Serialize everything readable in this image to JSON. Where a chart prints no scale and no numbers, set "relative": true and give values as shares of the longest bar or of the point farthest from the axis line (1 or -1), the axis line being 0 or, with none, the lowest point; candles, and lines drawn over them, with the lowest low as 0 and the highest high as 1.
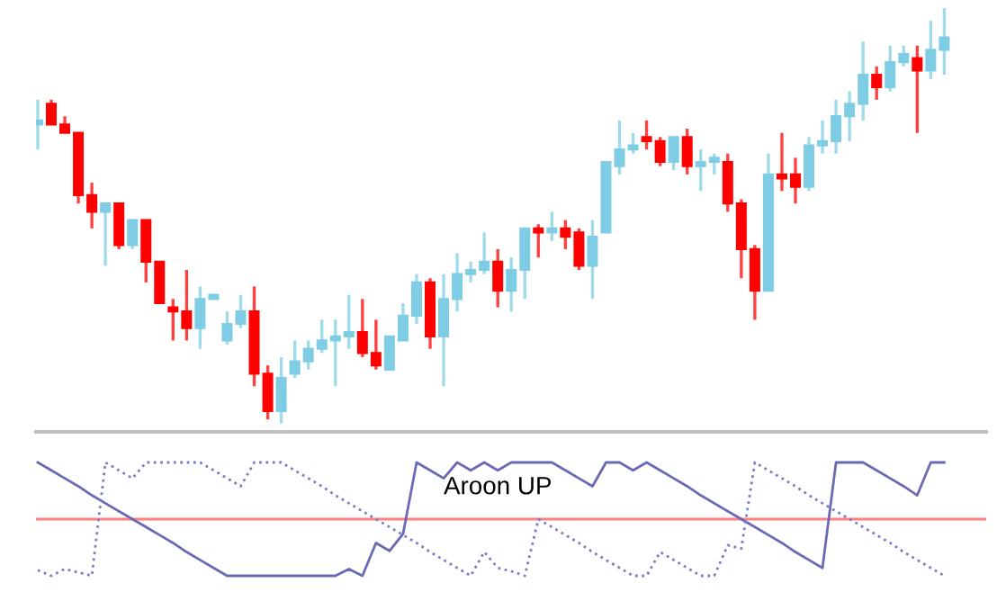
{
  "chart_data": [
    {
      "type": "candlestick",
      "relative": true,
      "categories": [
        null,
        null,
        null,
        null,
        null,
        null,
        null,
        null,
        null,
        null,
        null,
        null,
        null,
        null,
        null,
        null,
        null,
        null,
        null,
        null,
        null,
        null,
        null,
        null,
        null,
        null,
        null,
        null,
        null,
        null,
        null,
        null,
        null,
        null,
        null,
        null,
        null,
        null,
        null,
        null,
        null,
        null,
        null,
        null,
        null,
        null,
        null,
        null,
        null,
        null,
        null,
        null,
        null,
        null,
        null,
        null,
        null,
        null,
        null,
        null,
        null,
        null,
        null,
        null,
        null,
        null,
        null,
        null
      ],
      "ohlc": [
        [
          0.72,
          0.78,
          0.66,
          0.73
        ],
        [
          0.77,
          0.78,
          0.72,
          0.72
        ],
        [
          0.72,
          0.74,
          0.7,
          0.7
        ],
        [
          0.7,
          0.7,
          0.53,
          0.55
        ],
        [
          0.55,
          0.58,
          0.47,
          0.51
        ],
        [
          0.51,
          0.53,
          0.38,
          0.53
        ],
        [
          0.53,
          0.53,
          0.42,
          0.43
        ],
        [
          0.43,
          0.49,
          0.42,
          0.49
        ],
        [
          0.49,
          0.49,
          0.34,
          0.39
        ],
        [
          0.39,
          0.39,
          0.29,
          0.29
        ],
        [
          0.28,
          0.3,
          0.2,
          0.27
        ],
        [
          0.27,
          0.37,
          0.2,
          0.23
        ],
        [
          0.23,
          0.33,
          0.18,
          0.3
        ],
        [
          0.3,
          0.31,
          0.3,
          0.31
        ],
        [
          0.2,
          0.27,
          0.19,
          0.24
        ],
        [
          0.24,
          0.31,
          0.23,
          0.27
        ],
        [
          0.27,
          0.33,
          0.09,
          0.12
        ],
        [
          0.12,
          0.14,
          0.01,
          0.03
        ],
        [
          0.03,
          0.16,
          0.0,
          0.11
        ],
        [
          0.12,
          0.2,
          0.11,
          0.15
        ],
        [
          0.15,
          0.2,
          0.13,
          0.18
        ],
        [
          0.18,
          0.25,
          0.17,
          0.2
        ],
        [
          0.2,
          0.25,
          0.09,
          0.21
        ],
        [
          0.21,
          0.31,
          0.18,
          0.22
        ],
        [
          0.22,
          0.3,
          0.16,
          0.17
        ],
        [
          0.17,
          0.25,
          0.13,
          0.14
        ],
        [
          0.13,
          0.21,
          0.13,
          0.21
        ],
        [
          0.2,
          0.29,
          0.2,
          0.26
        ],
        [
          0.26,
          0.36,
          0.24,
          0.34
        ],
        [
          0.34,
          0.35,
          0.18,
          0.21
        ],
        [
          0.21,
          0.36,
          0.09,
          0.3
        ],
        [
          0.3,
          0.41,
          0.27,
          0.36
        ],
        [
          0.36,
          0.39,
          0.34,
          0.37
        ],
        [
          0.37,
          0.46,
          0.36,
          0.39
        ],
        [
          0.39,
          0.42,
          0.28,
          0.32
        ],
        [
          0.32,
          0.4,
          0.27,
          0.37
        ],
        [
          0.37,
          0.47,
          0.3,
          0.47
        ],
        [
          0.47,
          0.48,
          0.4,
          0.46
        ],
        [
          0.46,
          0.51,
          0.44,
          0.47
        ],
        [
          0.47,
          0.49,
          0.42,
          0.45
        ],
        [
          0.46,
          0.47,
          0.37,
          0.38
        ],
        [
          0.38,
          0.49,
          0.3,
          0.45
        ],
        [
          0.46,
          0.63,
          0.46,
          0.63
        ],
        [
          0.62,
          0.73,
          0.6,
          0.66
        ],
        [
          0.66,
          0.7,
          0.65,
          0.67
        ],
        [
          0.69,
          0.73,
          0.66,
          0.68
        ],
        [
          0.68,
          0.69,
          0.62,
          0.63
        ],
        [
          0.63,
          0.69,
          0.61,
          0.69
        ],
        [
          0.69,
          0.71,
          0.6,
          0.62
        ],
        [
          0.62,
          0.66,
          0.56,
          0.63
        ],
        [
          0.63,
          0.65,
          0.6,
          0.64
        ],
        [
          0.63,
          0.65,
          0.51,
          0.53
        ],
        [
          0.53,
          0.54,
          0.35,
          0.42
        ],
        [
          0.42,
          0.43,
          0.25,
          0.32
        ],
        [
          0.32,
          0.65,
          0.32,
          0.6
        ],
        [
          0.6,
          0.7,
          0.56,
          0.59
        ],
        [
          0.6,
          0.64,
          0.53,
          0.57
        ],
        [
          0.57,
          0.69,
          0.56,
          0.67
        ],
        [
          0.67,
          0.73,
          0.65,
          0.68
        ],
        [
          0.68,
          0.78,
          0.65,
          0.74
        ],
        [
          0.74,
          0.8,
          0.68,
          0.77
        ],
        [
          0.77,
          0.92,
          0.73,
          0.84
        ],
        [
          0.84,
          0.86,
          0.78,
          0.81
        ],
        [
          0.81,
          0.91,
          0.8,
          0.87
        ],
        [
          0.87,
          0.91,
          0.86,
          0.89
        ],
        [
          0.88,
          0.91,
          0.7,
          0.85
        ],
        [
          0.85,
          0.97,
          0.83,
          0.9
        ],
        [
          0.9,
          1.0,
          0.84,
          0.93
        ]
      ],
      "colors": [
        "#7fcde4",
        "#ff0000",
        "#ff0000",
        "#ff0000",
        "#ff0000",
        "#7fcde4",
        "#ff0000",
        "#7fcde4",
        "#ff0000",
        "#ff0000",
        "#ff0000",
        "#ff0000",
        "#7fcde4",
        "#7fcde4",
        "#7fcde4",
        "#7fcde4",
        "#ff0000",
        "#ff0000",
        "#7fcde4",
        "#7fcde4",
        "#7fcde4",
        "#7fcde4",
        "#7fcde4",
        "#7fcde4",
        "#ff0000",
        "#ff0000",
        "#7fcde4",
        "#7fcde4",
        "#7fcde4",
        "#ff0000",
        "#7fcde4",
        "#7fcde4",
        "#7fcde4",
        "#7fcde4",
        "#ff0000",
        "#7fcde4",
        "#7fcde4",
        "#ff0000",
        "#7fcde4",
        "#ff0000",
        "#ff0000",
        "#7fcde4",
        "#7fcde4",
        "#7fcde4",
        "#7fcde4",
        "#ff0000",
        "#ff0000",
        "#7fcde4",
        "#ff0000",
        "#7fcde4",
        "#7fcde4",
        "#ff0000",
        "#ff0000",
        "#ff0000",
        "#7fcde4",
        "#ff0000",
        "#ff0000",
        "#7fcde4",
        "#7fcde4",
        "#7fcde4",
        "#7fcde4",
        "#7fcde4",
        "#ff0000",
        "#7fcde4",
        "#7fcde4",
        "#ff0000",
        "#7fcde4",
        "#7fcde4"
      ]
    },
    {
      "type": "line",
      "relative": true,
      "marker": "none",
      "categories": [
        null,
        null,
        null,
        null,
        null,
        null,
        null,
        null,
        null,
        null,
        null,
        null,
        null,
        null,
        null,
        null,
        null,
        null,
        null,
        null,
        null,
        null,
        null,
        null,
        null,
        null,
        null,
        null,
        null,
        null,
        null,
        null,
        null,
        null,
        null,
        null,
        null,
        null,
        null,
        null,
        null,
        null,
        null,
        null,
        null,
        null,
        null,
        null,
        null,
        null,
        null,
        null,
        null,
        null,
        null,
        null,
        null,
        null,
        null,
        null,
        null,
        null,
        null,
        null,
        null,
        null,
        null,
        null
      ],
      "series": [
        {
          "name": "Aroon UP",
          "color": "#6a6ab4",
          "line_style": "solid",
          "values": [
            1.0,
            0.93,
            0.86,
            0.79,
            0.71,
            0.64,
            0.57,
            0.5,
            0.43,
            0.36,
            0.29,
            0.21,
            0.14,
            0.07,
            0,
            0,
            0,
            0,
            0,
            0,
            0,
            0,
            0,
            0.06,
            0,
            0.29,
            0.22,
            0.37,
            1.0,
            0.93,
            0.86,
            1.0,
            0.93,
            1.0,
            0.93,
            1.0,
            1.0,
            1.0,
            1.0,
            0.93,
            0.86,
            0.79,
            1.0,
            1.0,
            0.93,
            1.0,
            0.93,
            0.86,
            0.79,
            0.71,
            0.64,
            0.57,
            0.5,
            0.43,
            0.36,
            0.29,
            0.21,
            0.14,
            0.07,
            1.0,
            1.0,
            1.0,
            0.93,
            0.86,
            0.79,
            0.71,
            1.0,
            1.0
          ]
        },
        {
          "color": "#7c7cc4",
          "line_style": "dotted",
          "values": [
            0.05,
            0,
            0.06,
            0.03,
            0,
            1.0,
            0.93,
            0.86,
            1.0,
            1.0,
            1.0,
            1.0,
            1.0,
            0.93,
            0.86,
            0.79,
            1.0,
            1.0,
            1.0,
            0.93,
            0.86,
            0.79,
            0.71,
            0.64,
            0.57,
            0.5,
            0.43,
            0.36,
            0.29,
            0.21,
            0.14,
            0.07,
            0,
            0.21,
            0.07,
            0.04,
            0,
            0.5,
            0.43,
            0.36,
            0.29,
            0.21,
            0.14,
            0.07,
            0,
            0,
            0.21,
            0.14,
            0.07,
            0,
            0,
            0.27,
            0.24,
            1.0,
            0.93,
            0.86,
            0.79,
            0.71,
            0.64,
            0.57,
            0.5,
            0.43,
            0.36,
            0.29,
            0.21,
            0.14,
            0.07,
            0
          ]
        }
      ],
      "ref_lines": [
        {
          "axis": "y",
          "value": 0.5,
          "color": "#ff8080"
        }
      ]
    }
  ]
}
